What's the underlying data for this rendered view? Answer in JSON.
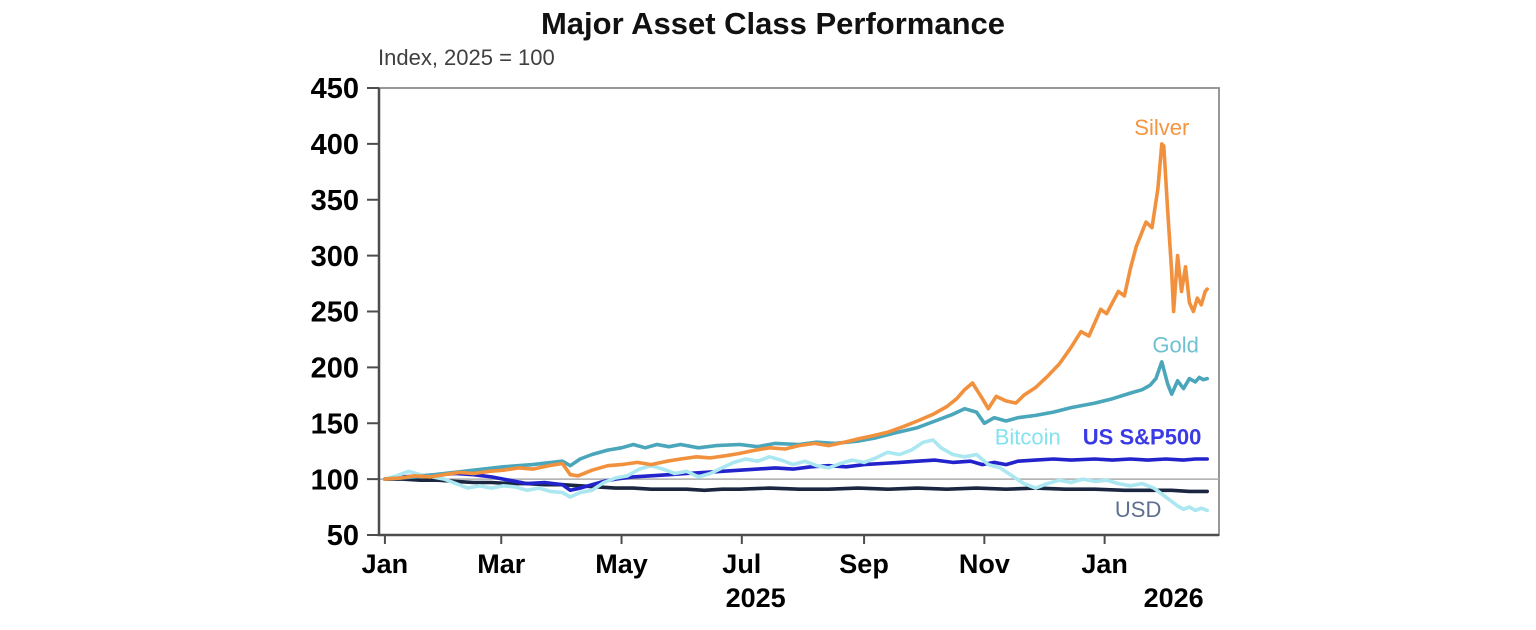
{
  "title": "Major Asset Class Performance",
  "subtitle": "Index, 2025 = 100",
  "chart_data": {
    "type": "line",
    "title": "Major Asset Class Performance",
    "subtitle": "Index, 2025 = 100",
    "x_unit": "days since 2025-01-01",
    "x_domain": [
      -3,
      423
    ],
    "y_domain": [
      50,
      450
    ],
    "y_ticks": [
      50,
      100,
      150,
      200,
      250,
      300,
      350,
      400,
      450
    ],
    "x_ticks": [
      {
        "label": "Jan",
        "day": 0
      },
      {
        "label": "Mar",
        "day": 59
      },
      {
        "label": "May",
        "day": 120
      },
      {
        "label": "Jul",
        "day": 181
      },
      {
        "label": "Sep",
        "day": 243
      },
      {
        "label": "Nov",
        "day": 304
      },
      {
        "label": "Jan",
        "day": 365
      }
    ],
    "year_labels": [
      {
        "label": "2025",
        "day": 188
      },
      {
        "label": "2026",
        "day": 400
      }
    ],
    "reference_line": 100,
    "grid": "off",
    "legend": "inline-labels",
    "axis_colors": {
      "box": "#8c8c8c",
      "axis": "#4d4d4d",
      "tick_text": "#000000",
      "reference": "#ababab"
    },
    "series": [
      {
        "name": "USD",
        "color": "#1b2740",
        "points": [
          [
            0,
            100
          ],
          [
            9,
            100
          ],
          [
            18,
            99
          ],
          [
            27,
            99
          ],
          [
            36,
            98
          ],
          [
            45,
            97
          ],
          [
            54,
            97
          ],
          [
            63,
            96
          ],
          [
            72,
            96
          ],
          [
            81,
            95
          ],
          [
            90,
            95
          ],
          [
            99,
            94
          ],
          [
            108,
            93
          ],
          [
            117,
            92
          ],
          [
            126,
            92
          ],
          [
            135,
            91
          ],
          [
            144,
            91
          ],
          [
            153,
            91
          ],
          [
            162,
            90
          ],
          [
            171,
            91
          ],
          [
            180,
            91
          ],
          [
            195,
            92
          ],
          [
            210,
            91
          ],
          [
            225,
            91
          ],
          [
            240,
            92
          ],
          [
            255,
            91
          ],
          [
            270,
            92
          ],
          [
            285,
            91
          ],
          [
            300,
            92
          ],
          [
            315,
            91
          ],
          [
            330,
            92
          ],
          [
            345,
            91
          ],
          [
            360,
            91
          ],
          [
            375,
            90
          ],
          [
            390,
            90
          ],
          [
            399,
            90
          ],
          [
            408,
            89
          ],
          [
            417,
            89
          ]
        ]
      },
      {
        "name": "US S&P500",
        "color": "#2323cc",
        "points": [
          [
            0,
            100
          ],
          [
            9,
            102
          ],
          [
            18,
            103
          ],
          [
            27,
            104
          ],
          [
            36,
            105
          ],
          [
            45,
            104
          ],
          [
            54,
            102
          ],
          [
            63,
            99
          ],
          [
            72,
            96
          ],
          [
            81,
            97
          ],
          [
            90,
            95
          ],
          [
            94,
            90
          ],
          [
            99,
            92
          ],
          [
            105,
            95
          ],
          [
            111,
            98
          ],
          [
            117,
            100
          ],
          [
            126,
            102
          ],
          [
            135,
            103
          ],
          [
            144,
            104
          ],
          [
            153,
            105
          ],
          [
            162,
            106
          ],
          [
            171,
            107
          ],
          [
            180,
            108
          ],
          [
            189,
            109
          ],
          [
            198,
            110
          ],
          [
            207,
            109
          ],
          [
            216,
            111
          ],
          [
            225,
            112
          ],
          [
            234,
            111
          ],
          [
            243,
            113
          ],
          [
            252,
            114
          ],
          [
            261,
            115
          ],
          [
            270,
            116
          ],
          [
            279,
            117
          ],
          [
            288,
            115
          ],
          [
            297,
            116
          ],
          [
            303,
            113
          ],
          [
            309,
            115
          ],
          [
            315,
            113
          ],
          [
            321,
            116
          ],
          [
            330,
            117
          ],
          [
            339,
            118
          ],
          [
            348,
            117
          ],
          [
            360,
            118
          ],
          [
            369,
            117
          ],
          [
            378,
            118
          ],
          [
            387,
            117
          ],
          [
            396,
            118
          ],
          [
            405,
            117
          ],
          [
            411,
            118
          ],
          [
            417,
            118
          ]
        ]
      },
      {
        "name": "Bitcoin",
        "color": "#aae7f0",
        "points": [
          [
            0,
            100
          ],
          [
            6,
            103
          ],
          [
            12,
            107
          ],
          [
            18,
            104
          ],
          [
            24,
            102
          ],
          [
            30,
            100
          ],
          [
            36,
            96
          ],
          [
            42,
            92
          ],
          [
            48,
            94
          ],
          [
            54,
            92
          ],
          [
            60,
            94
          ],
          [
            66,
            93
          ],
          [
            72,
            90
          ],
          [
            78,
            92
          ],
          [
            84,
            89
          ],
          [
            90,
            88
          ],
          [
            94,
            84
          ],
          [
            99,
            88
          ],
          [
            105,
            90
          ],
          [
            111,
            97
          ],
          [
            117,
            101
          ],
          [
            123,
            103
          ],
          [
            129,
            109
          ],
          [
            135,
            112
          ],
          [
            141,
            109
          ],
          [
            147,
            105
          ],
          [
            153,
            107
          ],
          [
            159,
            102
          ],
          [
            165,
            105
          ],
          [
            171,
            110
          ],
          [
            177,
            115
          ],
          [
            183,
            118
          ],
          [
            189,
            116
          ],
          [
            195,
            120
          ],
          [
            201,
            117
          ],
          [
            207,
            113
          ],
          [
            213,
            116
          ],
          [
            219,
            112
          ],
          [
            225,
            110
          ],
          [
            231,
            114
          ],
          [
            237,
            117
          ],
          [
            243,
            115
          ],
          [
            249,
            119
          ],
          [
            255,
            124
          ],
          [
            261,
            122
          ],
          [
            267,
            126
          ],
          [
            273,
            133
          ],
          [
            278,
            135
          ],
          [
            282,
            128
          ],
          [
            288,
            122
          ],
          [
            294,
            120
          ],
          [
            300,
            122
          ],
          [
            306,
            113
          ],
          [
            312,
            110
          ],
          [
            318,
            103
          ],
          [
            324,
            96
          ],
          [
            330,
            92
          ],
          [
            336,
            96
          ],
          [
            342,
            99
          ],
          [
            348,
            97
          ],
          [
            354,
            100
          ],
          [
            360,
            98
          ],
          [
            366,
            99
          ],
          [
            372,
            96
          ],
          [
            378,
            94
          ],
          [
            384,
            96
          ],
          [
            390,
            92
          ],
          [
            393,
            88
          ],
          [
            396,
            84
          ],
          [
            399,
            80
          ],
          [
            402,
            76
          ],
          [
            405,
            73
          ],
          [
            408,
            75
          ],
          [
            411,
            72
          ],
          [
            414,
            74
          ],
          [
            417,
            72
          ]
        ]
      },
      {
        "name": "Gold",
        "color": "#4aa6bb",
        "points": [
          [
            0,
            100
          ],
          [
            15,
            102
          ],
          [
            30,
            105
          ],
          [
            45,
            108
          ],
          [
            60,
            111
          ],
          [
            75,
            113
          ],
          [
            90,
            116
          ],
          [
            94,
            112
          ],
          [
            99,
            118
          ],
          [
            105,
            122
          ],
          [
            113,
            126
          ],
          [
            120,
            128
          ],
          [
            126,
            131
          ],
          [
            132,
            128
          ],
          [
            138,
            131
          ],
          [
            144,
            129
          ],
          [
            150,
            131
          ],
          [
            159,
            128
          ],
          [
            168,
            130
          ],
          [
            180,
            131
          ],
          [
            189,
            129
          ],
          [
            198,
            132
          ],
          [
            210,
            131
          ],
          [
            219,
            133
          ],
          [
            228,
            132
          ],
          [
            240,
            134
          ],
          [
            249,
            137
          ],
          [
            258,
            141
          ],
          [
            270,
            146
          ],
          [
            279,
            152
          ],
          [
            288,
            158
          ],
          [
            294,
            163
          ],
          [
            300,
            160
          ],
          [
            304,
            150
          ],
          [
            309,
            155
          ],
          [
            315,
            152
          ],
          [
            321,
            155
          ],
          [
            330,
            157
          ],
          [
            339,
            160
          ],
          [
            348,
            164
          ],
          [
            360,
            168
          ],
          [
            369,
            172
          ],
          [
            378,
            177
          ],
          [
            384,
            180
          ],
          [
            388,
            184
          ],
          [
            391,
            190
          ],
          [
            394,
            205
          ],
          [
            397,
            185
          ],
          [
            399,
            176
          ],
          [
            402,
            188
          ],
          [
            405,
            181
          ],
          [
            408,
            190
          ],
          [
            411,
            187
          ],
          [
            413,
            191
          ],
          [
            415,
            189
          ],
          [
            417,
            190
          ]
        ]
      },
      {
        "name": "Silver",
        "color": "#f2913d",
        "points": [
          [
            0,
            100
          ],
          [
            8,
            101
          ],
          [
            15,
            103
          ],
          [
            23,
            102
          ],
          [
            30,
            104
          ],
          [
            38,
            106
          ],
          [
            45,
            105
          ],
          [
            53,
            107
          ],
          [
            60,
            108
          ],
          [
            68,
            110
          ],
          [
            75,
            109
          ],
          [
            83,
            112
          ],
          [
            90,
            114
          ],
          [
            94,
            104
          ],
          [
            98,
            103
          ],
          [
            105,
            108
          ],
          [
            113,
            112
          ],
          [
            120,
            113
          ],
          [
            128,
            115
          ],
          [
            135,
            113
          ],
          [
            143,
            116
          ],
          [
            150,
            118
          ],
          [
            158,
            120
          ],
          [
            165,
            119
          ],
          [
            173,
            121
          ],
          [
            180,
            123
          ],
          [
            188,
            126
          ],
          [
            195,
            128
          ],
          [
            203,
            127
          ],
          [
            210,
            130
          ],
          [
            218,
            132
          ],
          [
            225,
            130
          ],
          [
            233,
            133
          ],
          [
            240,
            136
          ],
          [
            248,
            139
          ],
          [
            255,
            142
          ],
          [
            263,
            147
          ],
          [
            270,
            152
          ],
          [
            278,
            158
          ],
          [
            285,
            165
          ],
          [
            290,
            172
          ],
          [
            294,
            180
          ],
          [
            298,
            186
          ],
          [
            303,
            172
          ],
          [
            306,
            163
          ],
          [
            310,
            174
          ],
          [
            315,
            170
          ],
          [
            320,
            168
          ],
          [
            324,
            175
          ],
          [
            330,
            182
          ],
          [
            336,
            192
          ],
          [
            342,
            203
          ],
          [
            348,
            218
          ],
          [
            353,
            232
          ],
          [
            357,
            228
          ],
          [
            363,
            252
          ],
          [
            366,
            248
          ],
          [
            372,
            268
          ],
          [
            375,
            264
          ],
          [
            378,
            288
          ],
          [
            381,
            308
          ],
          [
            386,
            330
          ],
          [
            389,
            325
          ],
          [
            392,
            360
          ],
          [
            394,
            400
          ],
          [
            395,
            398
          ],
          [
            397,
            340
          ],
          [
            399,
            285
          ],
          [
            400,
            250
          ],
          [
            402,
            300
          ],
          [
            404,
            268
          ],
          [
            406,
            290
          ],
          [
            408,
            258
          ],
          [
            410,
            250
          ],
          [
            412,
            262
          ],
          [
            414,
            256
          ],
          [
            416,
            268
          ],
          [
            417,
            270
          ]
        ]
      }
    ],
    "annotations": [
      {
        "text": "Silver",
        "color": "#f5953f",
        "day": 394,
        "value": 415,
        "bold": false
      },
      {
        "text": "Gold",
        "color": "#6fc0d2",
        "day": 401,
        "value": 220,
        "bold": false
      },
      {
        "text": "Bitcoin",
        "color": "#85e2ef",
        "day": 326,
        "value": 138,
        "bold": false
      },
      {
        "text": "US S&P500",
        "color": "#3a3ae6",
        "day": 384,
        "value": 138,
        "bold": true
      },
      {
        "text": "USD",
        "color": "#5f6f8f",
        "day": 382,
        "value": 73,
        "bold": false
      }
    ]
  }
}
